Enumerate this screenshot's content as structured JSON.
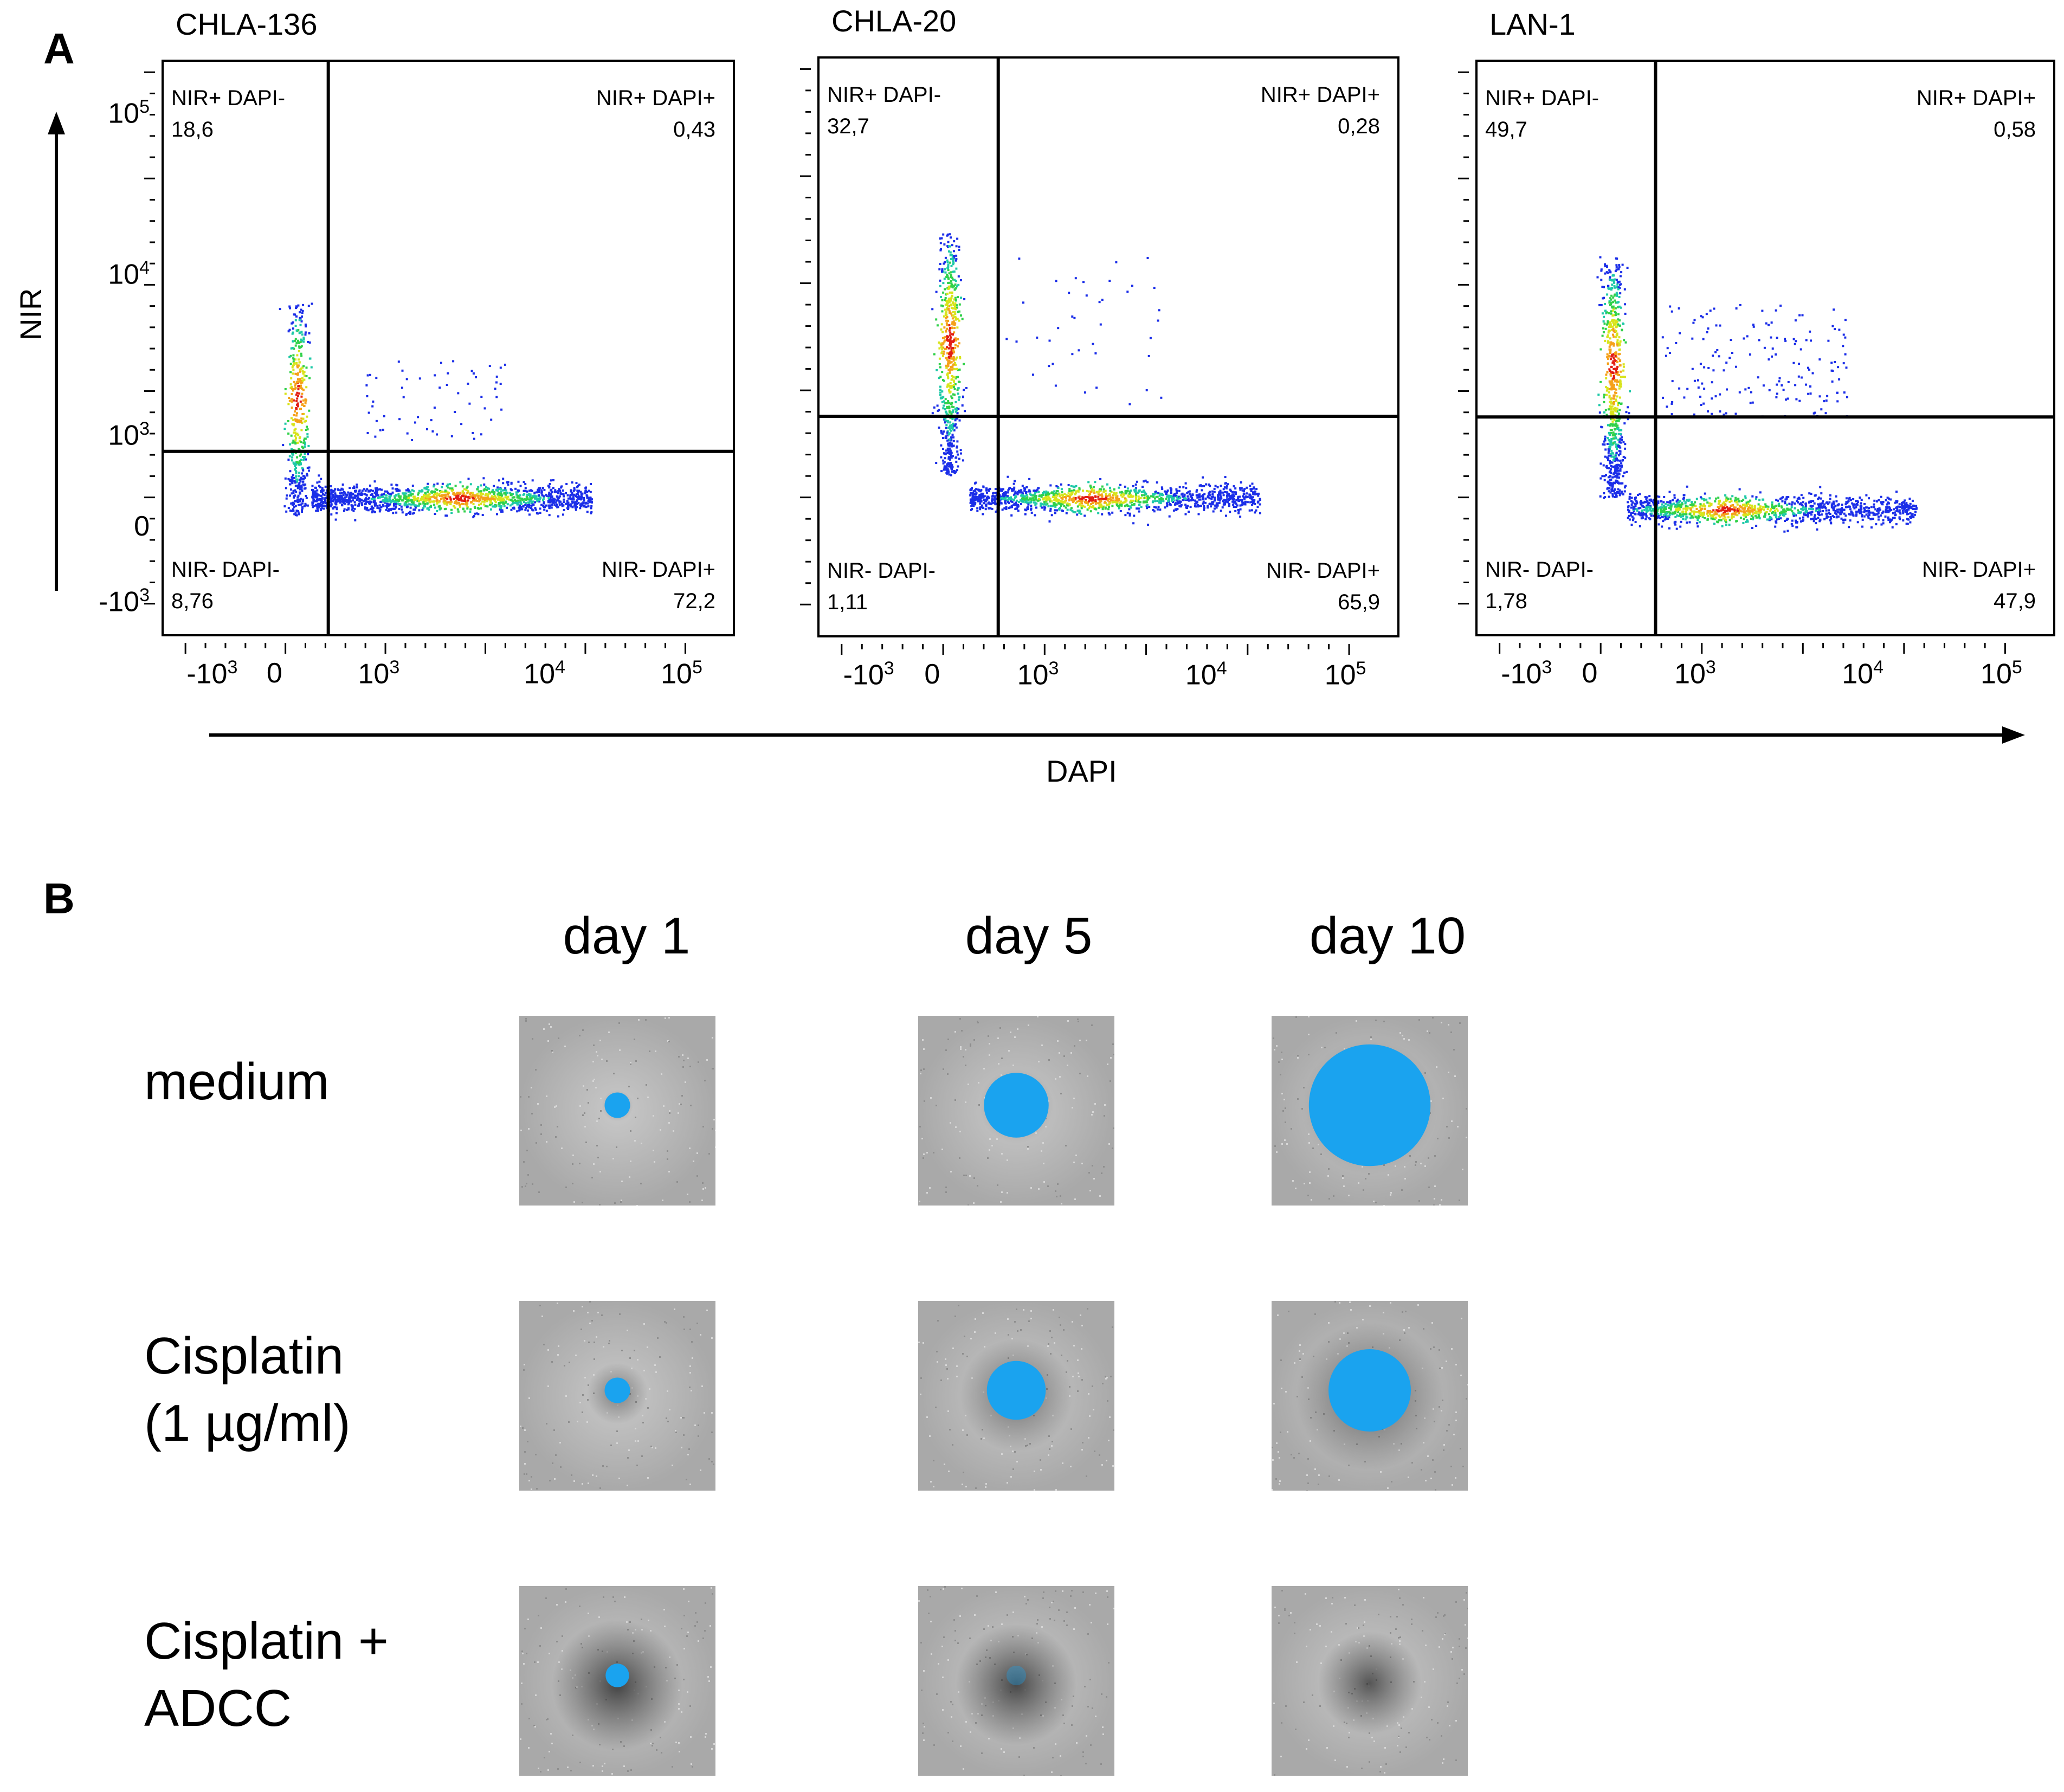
{
  "panel_a": {
    "letter": "A",
    "y_axis_label": "NIR",
    "x_axis_label": "DAPI",
    "y_ticks": [
      {
        "base": "10",
        "exp": "5"
      },
      {
        "base": "10",
        "exp": "4"
      },
      {
        "base": "10",
        "exp": "3"
      },
      {
        "base": "0",
        "exp": ""
      },
      {
        "base": "-10",
        "exp": "3"
      }
    ],
    "x_ticks": [
      {
        "base": "-10",
        "exp": "3"
      },
      {
        "base": "0",
        "exp": ""
      },
      {
        "base": "10",
        "exp": "3"
      },
      {
        "base": "10",
        "exp": "4"
      },
      {
        "base": "10",
        "exp": "5"
      }
    ]
  },
  "chart_data": [
    {
      "type": "scatter",
      "title": "CHLA-136",
      "xlabel": "DAPI",
      "ylabel": "NIR",
      "scale": "biexponential",
      "quadrants": {
        "top_left": {
          "label": "NIR+ DAPI-",
          "value": "18,6"
        },
        "top_right": {
          "label": "NIR+ DAPI+",
          "value": "0,43"
        },
        "bottom_left": {
          "label": "NIR- DAPI-",
          "value": "8,76"
        },
        "bottom_right": {
          "label": "NIR- DAPI+",
          "value": "72,2"
        }
      }
    },
    {
      "type": "scatter",
      "title": "CHLA-20",
      "xlabel": "DAPI",
      "ylabel": "NIR",
      "scale": "biexponential",
      "quadrants": {
        "top_left": {
          "label": "NIR+ DAPI-",
          "value": "32,7"
        },
        "top_right": {
          "label": "NIR+ DAPI+",
          "value": "0,28"
        },
        "bottom_left": {
          "label": "NIR- DAPI-",
          "value": "1,11"
        },
        "bottom_right": {
          "label": "NIR- DAPI+",
          "value": "65,9"
        }
      }
    },
    {
      "type": "scatter",
      "title": "LAN-1",
      "xlabel": "DAPI",
      "ylabel": "NIR",
      "scale": "biexponential",
      "quadrants": {
        "top_left": {
          "label": "NIR+ DAPI-",
          "value": "49,7"
        },
        "top_right": {
          "label": "NIR+ DAPI+",
          "value": "0,58"
        },
        "bottom_left": {
          "label": "NIR- DAPI-",
          "value": "1,78"
        },
        "bottom_right": {
          "label": "NIR- DAPI+",
          "value": "47,9"
        }
      }
    }
  ],
  "panel_b": {
    "letter": "B",
    "columns": [
      "day 1",
      "day 5",
      "day 10"
    ],
    "rows": [
      {
        "label_lines": [
          "medium"
        ],
        "spheroid_size": [
          0.13,
          0.33,
          0.62
        ],
        "dark_halo": [
          0.05,
          0.08,
          0.12
        ],
        "blue_intensity": [
          1.0,
          1.0,
          1.0
        ]
      },
      {
        "label_lines": [
          "Cisplatin",
          "(1 µg/ml)"
        ],
        "spheroid_size": [
          0.13,
          0.3,
          0.42
        ],
        "dark_halo": [
          0.3,
          0.45,
          0.55
        ],
        "blue_intensity": [
          1.0,
          1.0,
          1.0
        ]
      },
      {
        "label_lines": [
          "Cisplatin +",
          "ADCC"
        ],
        "spheroid_size": [
          0.12,
          0.1,
          0.0
        ],
        "dark_halo": [
          0.9,
          0.85,
          0.7
        ],
        "blue_intensity": [
          1.0,
          0.35,
          0.0
        ]
      }
    ],
    "colors": {
      "spheroid_blue": "#1aa3ef",
      "background_gray": "#b8b8b8"
    }
  }
}
